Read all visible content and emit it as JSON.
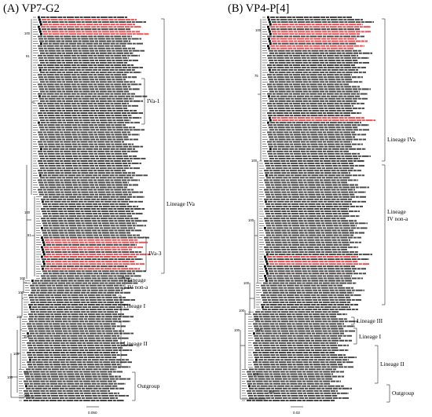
{
  "panel_a": {
    "title": "(A) VP7-G2",
    "labels": {
      "iva1": "IVa-1",
      "lineage_iva": "Lineage IVa",
      "iva3": "IVa-3",
      "lineage_ivnona_1": "Lineage",
      "lineage_ivnona_2": "IV non-a",
      "lineage_i": "Lineage I",
      "lineage_ii": "Lineage II",
      "outgroup": "Outgroup"
    },
    "bootstrap": [
      "100",
      "91",
      "100",
      "100",
      "81",
      "100",
      "100",
      "100",
      "100",
      "100",
      "100",
      "100"
    ],
    "scale_value": "0.050"
  },
  "panel_b": {
    "title": "(B) VP4-P[4]",
    "labels": {
      "lineage_iva": "Lineage IVa",
      "lineage_ivnona_1": "Lineage",
      "lineage_ivnona_2": "IV non-a",
      "lineage_iii": "Lineage III",
      "lineage_i": "Lineage I",
      "lineage_ii": "Lineage II",
      "outgroup": "Outgroup"
    },
    "bootstrap": [
      "100",
      "75",
      "100",
      "100",
      "100",
      "100",
      "100",
      "100",
      "100",
      "100",
      "100"
    ],
    "scale_value": "0.02"
  },
  "colors": {
    "branch": "#000000",
    "highlight_leaf": "#e8363a",
    "marker": "#000000"
  }
}
